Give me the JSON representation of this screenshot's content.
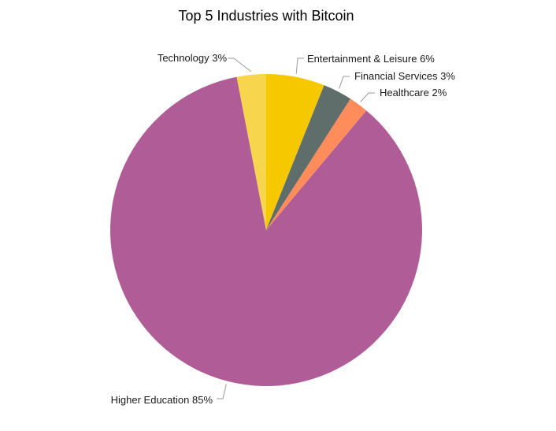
{
  "chart_data": {
    "type": "pie",
    "title": "Top 5 Industries with Bitcoin",
    "start_angle_deg": 0,
    "direction": "clockwise",
    "slices": [
      {
        "label": "Entertainment & Leisure 6%",
        "name": "Entertainment & Leisure",
        "value": 6,
        "color": "#F5C800"
      },
      {
        "label": "Financial Services 3%",
        "name": "Financial Services",
        "value": 3,
        "color": "#5F6E6B"
      },
      {
        "label": "Healthcare 2%",
        "name": "Healthcare",
        "value": 2,
        "color": "#FF8C5A"
      },
      {
        "label": "Higher Education 85%",
        "name": "Higher Education",
        "value": 85,
        "color": "#B05D97"
      },
      {
        "label": "Technology 3%",
        "name": "Technology",
        "value": 3,
        "color": "#F7D64E"
      }
    ]
  }
}
